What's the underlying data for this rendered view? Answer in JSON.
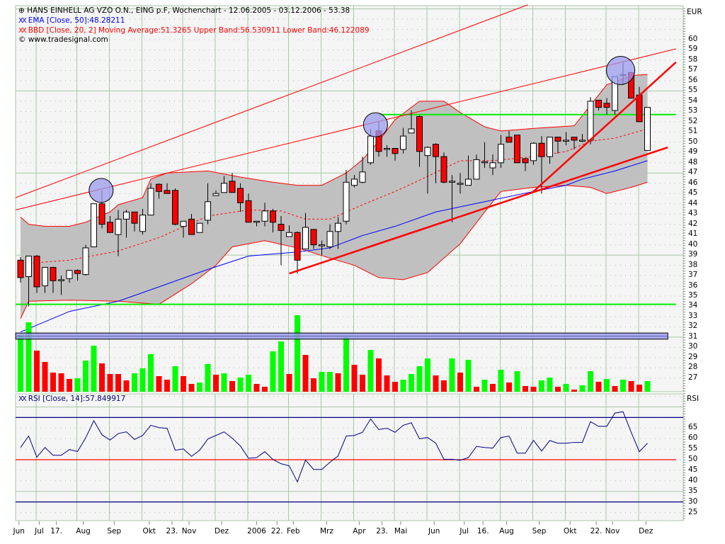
{
  "header": {
    "title": "HANS EINHELL AG VZO O.N., EING p.F, Wochenchart - 12.06.2005 - 03.12.2006 - 53.38",
    "ema_legend": "EMA [Close, 50]:48.28211",
    "bbd_legend": "BBD [Close, 20, 2] Moving Average:51.3265 Upper Band:56.530911 Lower Band:46.122089",
    "copyright": "© www.tradesignal.com",
    "rsi_legend": "RSI [Close, 14]:57.849917"
  },
  "colors": {
    "up": "#ffffff",
    "down": "#ff0000",
    "ema": "#0000ff",
    "bands": "#ff0000",
    "band_fill": "#c0c0c0",
    "vol_up": "#00ff00",
    "vol_down": "#ff0000",
    "rsi": "#000080",
    "hline": "#00ee00",
    "highlight": "#9999ee"
  },
  "chart_data": [
    {
      "type": "candlestick",
      "title": "HANS EINHELL AG VZO O.N., EING p.F, Wochenchart - 12.06.2005 - 03.12.2006 - 53.38",
      "unit_label": "EUR",
      "ylim": [
        26,
        63
      ],
      "y_ticks": [
        60,
        59,
        58,
        57,
        56,
        55,
        54,
        53,
        52,
        51,
        50,
        49,
        48,
        47,
        46,
        45,
        44,
        43,
        42,
        41,
        40,
        39,
        38,
        37,
        36,
        35,
        34,
        33,
        32,
        31,
        30,
        29,
        28,
        27
      ],
      "x_ticks": [
        {
          "label": "Jun",
          "week": 0.8
        },
        {
          "label": "Jul",
          "week": 3.3
        },
        {
          "label": "17.",
          "week": 5.4
        },
        {
          "label": "Aug",
          "week": 8.7
        },
        {
          "label": "Sep",
          "week": 12.5
        },
        {
          "label": "Okt",
          "week": 16.8
        },
        {
          "label": "23.",
          "week": 19.6
        },
        {
          "label": "Nov",
          "week": 21.7
        },
        {
          "label": "Dez",
          "week": 25.7
        },
        {
          "label": "2006",
          "week": 30
        },
        {
          "label": "22.",
          "week": 32.5
        },
        {
          "label": "Feb",
          "week": 34.5
        },
        {
          "label": "Mrz",
          "week": 38.6
        },
        {
          "label": "Apr",
          "week": 42.6
        },
        {
          "label": "23.",
          "week": 45.4
        },
        {
          "label": "Mai",
          "week": 47.7
        },
        {
          "label": "Jun",
          "week": 51.8
        },
        {
          "label": "Jul",
          "week": 55.5
        },
        {
          "label": "16.",
          "week": 57.8
        },
        {
          "label": "Aug",
          "week": 60.7
        },
        {
          "label": "Sep",
          "week": 64.7
        },
        {
          "label": "Okt",
          "week": 68.5
        },
        {
          "label": "22.",
          "week": 71.7
        },
        {
          "label": "Nov",
          "week": 73.7
        },
        {
          "label": "Dez",
          "week": 77.8
        }
      ],
      "ohlc": [
        [
          38.5,
          38.8,
          36.3,
          36.8
        ],
        [
          36.9,
          38.9,
          34.0,
          38.9
        ],
        [
          38.9,
          39.0,
          35.3,
          35.9
        ],
        [
          36.0,
          37.8,
          35.3,
          37.8
        ],
        [
          37.8,
          37.8,
          35.3,
          36.5
        ],
        [
          36.6,
          37.0,
          35.1,
          36.6
        ],
        [
          36.7,
          37.5,
          36.3,
          37.5
        ],
        [
          37.5,
          37.6,
          36.5,
          37.2
        ],
        [
          37.1,
          40.0,
          37.0,
          39.7
        ],
        [
          39.8,
          44.0,
          39.8,
          44.0
        ],
        [
          44.0,
          45.3,
          41.6,
          42.0
        ],
        [
          42.2,
          42.8,
          41.2,
          41.2
        ],
        [
          41.0,
          43.4,
          38.9,
          42.5
        ],
        [
          42.5,
          43.4,
          40.7,
          43.2
        ],
        [
          43.2,
          43.2,
          41.3,
          42.1
        ],
        [
          41.3,
          43.5,
          41.0,
          42.9
        ],
        [
          42.9,
          46.0,
          42.9,
          45.5
        ],
        [
          45.9,
          46.0,
          44.5,
          45.2
        ],
        [
          45.3,
          46.0,
          45.0,
          45.0
        ],
        [
          45.3,
          45.5,
          41.9,
          42.0
        ],
        [
          41.8,
          42.3,
          40.7,
          42.3
        ],
        [
          42.5,
          43.0,
          41.0,
          41.0
        ],
        [
          41.2,
          42.1,
          41.2,
          42.1
        ],
        [
          42.4,
          46.0,
          42.0,
          44.2
        ],
        [
          44.8,
          45.3,
          44.8,
          45.0
        ],
        [
          45.1,
          46.7,
          45.1,
          46.0
        ],
        [
          46.2,
          47.0,
          45.1,
          45.1
        ],
        [
          45.5,
          46.0,
          43.2,
          44.1
        ],
        [
          44.3,
          45.0,
          42.2,
          42.2
        ],
        [
          42.2,
          42.3,
          41.8,
          42.3
        ],
        [
          42.3,
          44.1,
          41.8,
          43.3
        ],
        [
          43.3,
          43.5,
          41.2,
          42.2
        ],
        [
          42.0,
          42.8,
          38.0,
          41.4
        ],
        [
          40.8,
          41.9,
          40.8,
          41.2
        ],
        [
          41.2,
          41.3,
          37.2,
          38.5
        ],
        [
          39.6,
          43.1,
          39.6,
          41.7
        ],
        [
          41.5,
          41.5,
          39.6,
          40.0
        ],
        [
          40.0,
          40.4,
          39.0,
          40.0
        ],
        [
          39.8,
          42.0,
          39.6,
          41.3
        ],
        [
          41.3,
          42.7,
          39.6,
          42.1
        ],
        [
          42.3,
          47.3,
          42.0,
          46.1
        ],
        [
          45.8,
          46.8,
          45.6,
          46.4
        ],
        [
          46.1,
          48.6,
          46.0,
          47.1
        ],
        [
          48.0,
          51.3,
          47.8,
          50.6
        ],
        [
          51.1,
          52.0,
          48.6,
          49.1
        ],
        [
          49.3,
          49.7,
          48.6,
          49.4
        ],
        [
          49.4,
          49.4,
          48.2,
          48.9
        ],
        [
          49.3,
          51.4,
          48.9,
          50.6
        ],
        [
          50.9,
          53.1,
          50.9,
          51.3
        ],
        [
          52.5,
          52.6,
          47.6,
          49.1
        ],
        [
          48.7,
          49.6,
          45.0,
          49.5
        ],
        [
          49.8,
          49.9,
          46.0,
          48.6
        ],
        [
          48.6,
          49.0,
          46.0,
          46.1
        ],
        [
          46.2,
          46.8,
          42.2,
          46.2
        ],
        [
          46.0,
          47.0,
          45.0,
          46.0
        ],
        [
          45.8,
          48.7,
          45.8,
          46.4
        ],
        [
          46.4,
          48.8,
          46.4,
          48.3
        ],
        [
          48.0,
          50.0,
          47.5,
          48.1
        ],
        [
          47.5,
          48.8,
          46.8,
          48.0
        ],
        [
          48.0,
          50.7,
          47.5,
          49.8
        ],
        [
          50.5,
          51.1,
          50.0,
          50.0
        ],
        [
          50.7,
          50.7,
          48.0,
          48.0
        ],
        [
          48.4,
          48.4,
          47.2,
          48.0
        ],
        [
          48.2,
          50.0,
          47.8,
          49.9
        ],
        [
          49.9,
          50.6,
          45.0,
          48.6
        ],
        [
          48.6,
          50.5,
          47.9,
          50.5
        ],
        [
          50.5,
          50.5,
          48.9,
          50.1
        ],
        [
          50.2,
          51.0,
          49.7,
          50.2
        ],
        [
          50.5,
          50.5,
          49.3,
          50.2
        ],
        [
          50.2,
          50.8,
          50.0,
          50.2
        ],
        [
          50.2,
          54.4,
          49.8,
          54.0
        ],
        [
          54.1,
          54.1,
          53.1,
          53.4
        ],
        [
          53.8,
          54.3,
          52.7,
          53.4
        ],
        [
          53.1,
          56.4,
          52.7,
          56.4
        ],
        [
          56.5,
          57.9,
          55.6,
          56.6
        ],
        [
          56.8,
          56.8,
          54.3,
          54.3
        ],
        [
          54.6,
          55.4,
          52.0,
          52.0
        ],
        [
          49.2,
          53.4,
          49.2,
          53.4
        ]
      ],
      "ema50": [
        [
          1,
          31.5
        ],
        [
          7,
          33.5
        ],
        [
          13,
          34.5
        ],
        [
          18,
          35.9
        ],
        [
          24,
          37.6
        ],
        [
          29,
          38.9
        ],
        [
          35,
          39.3
        ],
        [
          39,
          39.7
        ],
        [
          43,
          40.9
        ],
        [
          47,
          41.8
        ],
        [
          52,
          43.2
        ],
        [
          58,
          44.2
        ],
        [
          64,
          45.2
        ],
        [
          68,
          45.8
        ],
        [
          70,
          46.4
        ],
        [
          74,
          47.2
        ],
        [
          78,
          48.2
        ]
      ],
      "bb_upper": [
        [
          1,
          42.7
        ],
        [
          2,
          42.0
        ],
        [
          4,
          41.8
        ],
        [
          7,
          41.8
        ],
        [
          9,
          42.2
        ],
        [
          12,
          43.2
        ],
        [
          13,
          43.9
        ],
        [
          16,
          44.6
        ],
        [
          17,
          46.4
        ],
        [
          19,
          47.0
        ],
        [
          24,
          47.2
        ],
        [
          28,
          46.6
        ],
        [
          32,
          46.1
        ],
        [
          35,
          45.8
        ],
        [
          38,
          45.8
        ],
        [
          41,
          47.0
        ],
        [
          43,
          48.3
        ],
        [
          45,
          50.1
        ],
        [
          47,
          52.2
        ],
        [
          50,
          54.0
        ],
        [
          53,
          54.0
        ],
        [
          55,
          52.9
        ],
        [
          58,
          51.5
        ],
        [
          60,
          51.1
        ],
        [
          65,
          51.4
        ],
        [
          69,
          51.6
        ],
        [
          71,
          53.6
        ],
        [
          73,
          55.6
        ],
        [
          76,
          56.5
        ],
        [
          78,
          56.6
        ]
      ],
      "bb_lower": [
        [
          1,
          32.8
        ],
        [
          2,
          34.5
        ],
        [
          7,
          34.6
        ],
        [
          13,
          34.5
        ],
        [
          18,
          34.2
        ],
        [
          22,
          36.2
        ],
        [
          25,
          38.0
        ],
        [
          27,
          39.8
        ],
        [
          31,
          40.4
        ],
        [
          35,
          39.7
        ],
        [
          39,
          38.7
        ],
        [
          42,
          38.0
        ],
        [
          45,
          36.8
        ],
        [
          48,
          36.6
        ],
        [
          51,
          37.3
        ],
        [
          55,
          40.1
        ],
        [
          58,
          43.2
        ],
        [
          60,
          45.2
        ],
        [
          64,
          45.6
        ],
        [
          68,
          45.8
        ],
        [
          71,
          45.6
        ],
        [
          73,
          45.0
        ],
        [
          76,
          45.6
        ],
        [
          78,
          46.1
        ]
      ],
      "bb_mid": [
        [
          2,
          38.2
        ],
        [
          7,
          38.5
        ],
        [
          13,
          39.4
        ],
        [
          18,
          40.7
        ],
        [
          24,
          42.8
        ],
        [
          29,
          43.4
        ],
        [
          33,
          43.3
        ],
        [
          36,
          42.5
        ],
        [
          39,
          42.5
        ],
        [
          43,
          43.9
        ],
        [
          47,
          45.2
        ],
        [
          50,
          46.3
        ],
        [
          55,
          48.2
        ],
        [
          59,
          48.2
        ],
        [
          64,
          48.6
        ],
        [
          68,
          49.1
        ],
        [
          71,
          50.1
        ],
        [
          74,
          50.4
        ],
        [
          78,
          51.3
        ]
      ],
      "volume_relative": [
        240,
        294,
        174,
        126,
        81,
        78,
        54,
        57,
        132,
        195,
        120,
        75,
        75,
        48,
        78,
        99,
        159,
        66,
        51,
        108,
        66,
        33,
        39,
        117,
        72,
        78,
        45,
        60,
        72,
        33,
        21,
        171,
        213,
        75,
        324,
        156,
        57,
        84,
        84,
        78,
        231,
        114,
        72,
        177,
        141,
        69,
        42,
        51,
        75,
        108,
        141,
        69,
        48,
        141,
        81,
        135,
        21,
        51,
        33,
        93,
        39,
        87,
        24,
        21,
        48,
        60,
        21,
        33,
        9,
        27,
        87,
        42,
        54,
        24,
        51,
        45,
        30,
        45
      ],
      "volume_dir": [
        "up",
        "up",
        "down",
        "down",
        "down",
        "down",
        "down",
        "up",
        "up",
        "up",
        "down",
        "down",
        "down",
        "down",
        "up",
        "up",
        "up",
        "down",
        "down",
        "up",
        "down",
        "down",
        "up",
        "up",
        "down",
        "up",
        "down",
        "up",
        "up",
        "down",
        "down",
        "up",
        "up",
        "down",
        "up",
        "down",
        "down",
        "up",
        "up",
        "down",
        "up",
        "down",
        "down",
        "up",
        "down",
        "down",
        "down",
        "up",
        "up",
        "up",
        "up",
        "down",
        "down",
        "up",
        "down",
        "up",
        "down",
        "up",
        "down",
        "up",
        "down",
        "up",
        "down",
        "down",
        "up",
        "up",
        "down",
        "up",
        "down",
        "up",
        "up",
        "down",
        "up",
        "down",
        "up",
        "down",
        "down",
        "up"
      ],
      "trendlines": [
        {
          "color": "red",
          "width": "thin",
          "from": [
            0.4,
            44.6
          ],
          "to": [
            63.3,
            63.4
          ]
        },
        {
          "color": "red",
          "width": "thin",
          "from": [
            0.4,
            43.4
          ],
          "to": [
            81.5,
            59.1
          ]
        },
        {
          "color": "red",
          "width": "thick",
          "from": [
            34.0,
            37.2
          ],
          "to": [
            80.5,
            49.5
          ]
        },
        {
          "color": "red",
          "width": "thick",
          "from": [
            64.0,
            45.2
          ],
          "to": [
            81.5,
            57.8
          ]
        }
      ],
      "horizontal_lines": [
        {
          "color": "green",
          "price": 34.2,
          "from_week": 0.4,
          "to_week": 81.5
        },
        {
          "color": "green",
          "price": 52.7,
          "from_week": 45,
          "to_week": 81.5
        }
      ],
      "horizontal_band": {
        "color": "blue",
        "price_low": 30.8,
        "price_high": 31.4,
        "from_week": 0.4,
        "to_week": 80.5
      },
      "highlight_circles": [
        [
          10.9,
          45.3
        ],
        [
          44.6,
          51.7
        ],
        [
          74.7,
          57.0
        ]
      ]
    },
    {
      "type": "line",
      "title": "RSI [Close, 14]:57.849917",
      "unit_label": "RSI",
      "ylim": [
        23,
        81
      ],
      "y_ticks": [
        65,
        60,
        55,
        50,
        45,
        40,
        35,
        30,
        25
      ],
      "reference_lines": [
        {
          "value": 70,
          "color": "navy"
        },
        {
          "value": 30,
          "color": "navy"
        },
        {
          "value": 50,
          "color": "red"
        }
      ],
      "values": [
        55.8,
        61.2,
        51.2,
        55.8,
        52.1,
        52.1,
        54.8,
        53.9,
        60.3,
        68.5,
        61.8,
        59.3,
        62.4,
        63.2,
        59.6,
        61.5,
        66.3,
        65.2,
        64.9,
        54.5,
        55.1,
        51.6,
        54.5,
        59.8,
        61.5,
        63.2,
        60.2,
        56.5,
        50.7,
        51.0,
        53.8,
        50.1,
        48.1,
        47.1,
        39.5,
        49.8,
        45.4,
        45.4,
        48.8,
        51.8,
        61.2,
        61.5,
        63.0,
        69.3,
        64.3,
        64.9,
        63.0,
        66.3,
        67.5,
        59.9,
        60.5,
        57.8,
        50.2,
        50.2,
        49.7,
        51.0,
        56.3,
        55.8,
        55.5,
        60.5,
        61.2,
        53.1,
        53.1,
        59.2,
        54.1,
        59.1,
        57.8,
        57.8,
        58.2,
        58.2,
        68.0,
        65.8,
        65.8,
        72.1,
        72.7,
        63.0,
        53.8,
        57.8
      ]
    }
  ]
}
